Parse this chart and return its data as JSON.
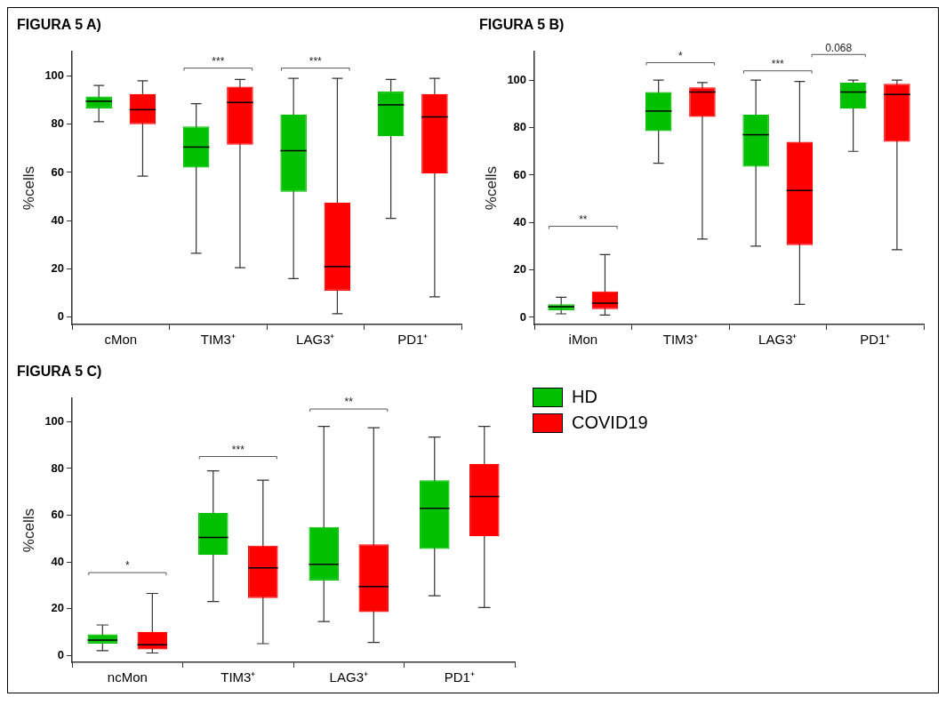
{
  "chart_data": [
    {
      "type": "box",
      "title": "FIGURA 5 A)",
      "ylabel": "%cells",
      "categories": [
        "cMon",
        "TIM3⁺",
        "LAG3⁺",
        "PD1⁺"
      ],
      "ylim": [
        -3,
        110
      ],
      "yticks": [
        0,
        20,
        40,
        60,
        80,
        100
      ],
      "series": [
        {
          "color": "#00c000",
          "boxes": [
            {
              "low": 81,
              "q1": 86.5,
              "median": 89.5,
              "q3": 91.5,
              "high": 96
            },
            {
              "low": 26.5,
              "q1": 62,
              "median": 70.5,
              "q3": 79,
              "high": 88.5
            },
            {
              "low": 16,
              "q1": 52,
              "median": 69,
              "q3": 84,
              "high": 99
            },
            {
              "low": 41,
              "q1": 75,
              "median": 88,
              "q3": 93.5,
              "high": 98.5
            }
          ]
        },
        {
          "color": "#ff0000",
          "boxes": [
            {
              "low": 58.5,
              "q1": 80,
              "median": 86,
              "q3": 92.5,
              "high": 98
            },
            {
              "low": 20.5,
              "q1": 71.5,
              "median": 89,
              "q3": 95.5,
              "high": 98.5
            },
            {
              "low": 1.5,
              "q1": 11,
              "median": 21,
              "q3": 47.5,
              "high": 99
            },
            {
              "low": 8.5,
              "q1": 59.5,
              "median": 83,
              "q3": 92.5,
              "high": 99
            }
          ]
        }
      ],
      "annotations": [
        "***",
        "***"
      ]
    },
    {
      "type": "box",
      "title": "FIGURA 5 B)",
      "ylabel": "%cells",
      "categories": [
        "iMon",
        "TIM3⁺",
        "LAG3⁺",
        "PD1⁺"
      ],
      "ylim": [
        -3,
        112
      ],
      "yticks": [
        0,
        20,
        40,
        60,
        80,
        100
      ],
      "series": [
        {
          "color": "#00c000",
          "boxes": [
            {
              "low": 1.5,
              "q1": 3,
              "median": 4.5,
              "q3": 5.5,
              "high": 8.5
            },
            {
              "low": 65,
              "q1": 78.5,
              "median": 87,
              "q3": 95,
              "high": 100
            },
            {
              "low": 30,
              "q1": 63.5,
              "median": 77,
              "q3": 85.5,
              "high": 100
            },
            {
              "low": 70,
              "q1": 88,
              "median": 95,
              "q3": 99,
              "high": 100
            }
          ]
        },
        {
          "color": "#ff0000",
          "boxes": [
            {
              "low": 1,
              "q1": 3.5,
              "median": 6,
              "q3": 11,
              "high": 26.5
            },
            {
              "low": 33,
              "q1": 84.5,
              "median": 95,
              "q3": 97,
              "high": 99
            },
            {
              "low": 5.5,
              "q1": 30.5,
              "median": 53.5,
              "q3": 74,
              "high": 99.5
            },
            {
              "low": 28.5,
              "q1": 74,
              "median": 94,
              "q3": 98.5,
              "high": 100
            }
          ]
        }
      ],
      "annotations": [
        "**",
        "*",
        "***",
        "0.068"
      ]
    },
    {
      "type": "box",
      "title": "FIGURA 5 C)",
      "ylabel": "%cells",
      "categories": [
        "ncMon",
        "TIM3⁺",
        "LAG3⁺",
        "PD1⁺"
      ],
      "ylim": [
        -3,
        110
      ],
      "yticks": [
        0,
        20,
        40,
        60,
        80,
        100
      ],
      "legend": "right",
      "series": [
        {
          "name": "HD",
          "color": "#00c000",
          "boxes": [
            {
              "low": 2,
              "q1": 5,
              "median": 6.5,
              "q3": 9,
              "high": 13
            },
            {
              "low": 23,
              "q1": 43,
              "median": 50.5,
              "q3": 61,
              "high": 79
            },
            {
              "low": 14.5,
              "q1": 32,
              "median": 39,
              "q3": 55,
              "high": 98
            },
            {
              "low": 25.5,
              "q1": 45.5,
              "median": 63,
              "q3": 75,
              "high": 93.5
            }
          ]
        },
        {
          "name": "COVID19",
          "color": "#ff0000",
          "boxes": [
            {
              "low": 1,
              "q1": 2.5,
              "median": 4.5,
              "q3": 10,
              "high": 26.5
            },
            {
              "low": 5,
              "q1": 24.5,
              "median": 37.5,
              "q3": 47,
              "high": 75
            },
            {
              "low": 5.5,
              "q1": 18.5,
              "median": 29.5,
              "q3": 47.5,
              "high": 97.5
            },
            {
              "low": 20.5,
              "q1": 51,
              "median": 68,
              "q3": 82,
              "high": 98
            }
          ]
        }
      ],
      "annotations": [
        "*",
        "***",
        "**"
      ]
    }
  ]
}
